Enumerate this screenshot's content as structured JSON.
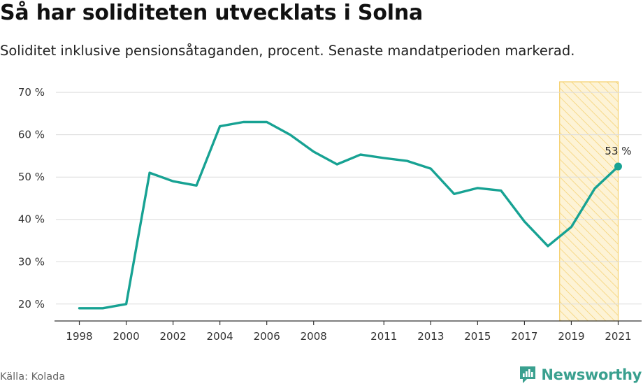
{
  "header": {
    "title": "Så har soliditeten utvecklats i Solna",
    "subtitle": "Soliditet inklusive pensionsåtaganden, procent. Senaste mandatperioden markerad."
  },
  "footer": {
    "source": "Källa: Kolada",
    "brand": "Newsworthy"
  },
  "colors": {
    "line": "#17a293",
    "highlight_fill": "#fdf0c8",
    "highlight_stroke": "#f5cf6a",
    "grid": "#dcdcdc",
    "axis": "#333333",
    "brand": "#3aa08f"
  },
  "chart_data": {
    "type": "line",
    "title": "Så har soliditeten utvecklats i Solna",
    "subtitle": "Soliditet inklusive pensionsåtaganden, procent. Senaste mandatperioden markerad.",
    "xlabel": "",
    "ylabel": "",
    "grid": true,
    "xlim": [
      1997,
      2022
    ],
    "ylim": [
      16,
      72.5
    ],
    "x_ticks": [
      1998,
      2000,
      2002,
      2004,
      2006,
      2008,
      2011,
      2013,
      2015,
      2017,
      2019,
      2021
    ],
    "y_ticks": [
      20,
      30,
      40,
      50,
      60,
      70
    ],
    "y_tick_labels": [
      "20 %",
      "30 %",
      "40 %",
      "50 %",
      "60 %",
      "70 %"
    ],
    "highlight_period": [
      2018.5,
      2021
    ],
    "series": [
      {
        "name": "Soliditet",
        "x": [
          1998,
          1999,
          2000,
          2001,
          2002,
          2003,
          2004,
          2005,
          2006,
          2007,
          2008,
          2009,
          2010,
          2011,
          2012,
          2013,
          2014,
          2015,
          2016,
          2017,
          2018,
          2019,
          2020,
          2021
        ],
        "values": [
          19,
          19,
          20,
          51,
          49,
          48,
          62,
          63,
          63,
          60,
          56,
          53,
          55.3,
          54.5,
          53.8,
          52,
          46,
          47.4,
          46.8,
          39.5,
          33.7,
          38.2,
          47.3,
          52.5
        ]
      }
    ],
    "annotations": [
      {
        "x": 2021,
        "y": 52.5,
        "label": "53 %"
      }
    ]
  }
}
